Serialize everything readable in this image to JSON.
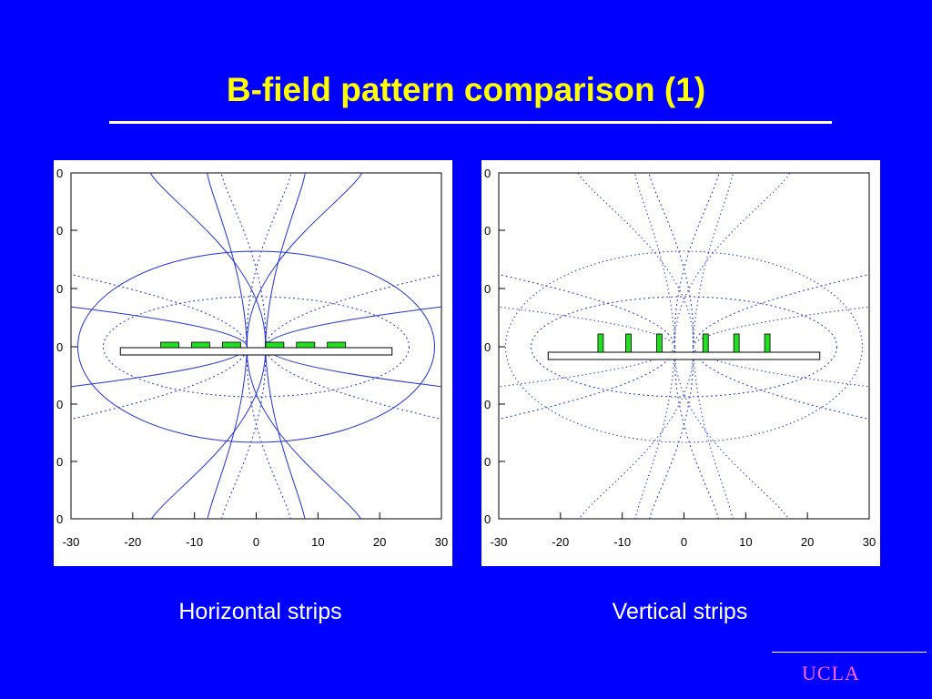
{
  "slide": {
    "title": "B-field pattern comparison (1)",
    "logo_text": "UCLA"
  },
  "colors": {
    "background": "#0000ff",
    "title": "#ffff00",
    "field_lines": "#2233cc",
    "strip_fill": "#22dd22",
    "logo": "#ff66ff"
  },
  "plots": [
    {
      "caption": "Horizontal strips",
      "strip_orientation": "horizontal",
      "x_ticks": [
        "-30",
        "-20",
        "-10",
        "0",
        "10",
        "20",
        "30"
      ],
      "y_ticks": [
        "0",
        "0",
        "0",
        "0",
        "0",
        "0",
        "0"
      ],
      "chart_data": {
        "type": "line",
        "xlim": [
          -30,
          30
        ],
        "x_ticks": [
          -30,
          -20,
          -10,
          0,
          10,
          20,
          30
        ],
        "strip_centers_x": [
          -14,
          -9,
          -4,
          3,
          8,
          13
        ],
        "substrate_x_range": [
          -22,
          22
        ],
        "field_line_style": "mixed solid and dotted"
      }
    },
    {
      "caption": "Vertical strips",
      "strip_orientation": "vertical",
      "x_ticks": [
        "-30",
        "-20",
        "-10",
        "0",
        "10",
        "20",
        "30"
      ],
      "y_ticks": [
        "0",
        "0",
        "0",
        "0",
        "0",
        "0",
        "0"
      ],
      "chart_data": {
        "type": "line",
        "xlim": [
          -30,
          30
        ],
        "x_ticks": [
          -30,
          -20,
          -10,
          0,
          10,
          20,
          30
        ],
        "strip_centers_x": [
          -13.5,
          -9,
          -4,
          3.5,
          8.5,
          13.5
        ],
        "substrate_x_range": [
          -22,
          22
        ],
        "field_line_style": "dotted"
      }
    }
  ]
}
